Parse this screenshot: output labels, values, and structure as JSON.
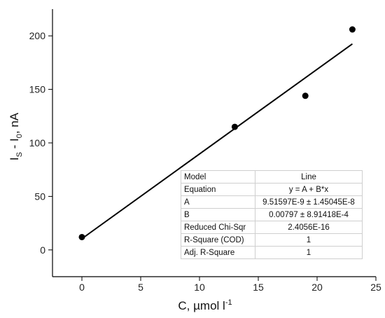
{
  "chart_data": {
    "type": "scatter",
    "title": "",
    "xlabel": "C, µmol l",
    "xlabel_sup": "-1",
    "ylabel_main": "I",
    "ylabel_sub1": "S",
    "ylabel_mid": " - I",
    "ylabel_sub2": "0",
    "ylabel_end": ", nA",
    "xlim": [
      -2.5,
      25
    ],
    "ylim": [
      -25,
      225
    ],
    "xticks": [
      0,
      5,
      10,
      15,
      20,
      25
    ],
    "yticks": [
      0,
      50,
      100,
      150,
      200
    ],
    "grid": false,
    "series": [
      {
        "kind": "points",
        "x": [
          0,
          13,
          19,
          23
        ],
        "y": [
          12,
          115,
          144,
          206
        ]
      },
      {
        "kind": "fit-line",
        "x": [
          0,
          23
        ],
        "y": [
          10.5,
          192.5
        ]
      }
    ],
    "fit_table": [
      {
        "key": "Model",
        "value": "Line"
      },
      {
        "key": "Equation",
        "value": "y = A + B*x"
      },
      {
        "key": "A",
        "value": "9.51597E-9 ± 1.45045E-8"
      },
      {
        "key": "B",
        "value": "0.00797 ± 8.91418E-4"
      },
      {
        "key": "Reduced Chi-Sqr",
        "value": "2.4056E-16"
      },
      {
        "key": "R-Square (COD)",
        "value": "1"
      },
      {
        "key": "Adj. R-Square",
        "value": "1"
      }
    ]
  }
}
